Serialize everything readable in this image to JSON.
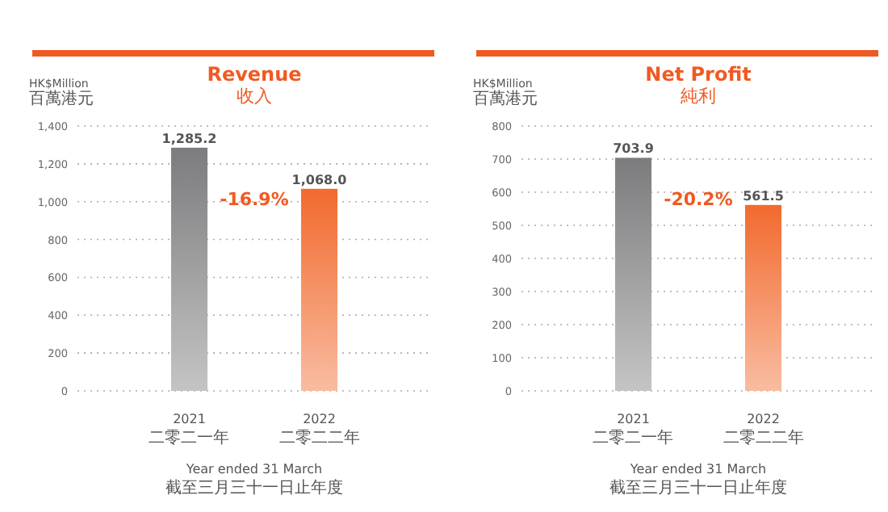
{
  "chart_data": [
    {
      "type": "bar",
      "title": "Revenue",
      "subtitle": "收入",
      "ylabel": "HK$Million\n百萬港元",
      "xlabel": "Year ended 31 March\n截至三月三十一日止年度",
      "categories": [
        "2021\n二零二一年",
        "2022\n二零二二年"
      ],
      "values": [
        1285.2,
        1068.0
      ],
      "colors": [
        "#7c7c7e",
        "#f26a2e"
      ],
      "value_labels": [
        "1,285.2",
        "1,068.0"
      ],
      "ylim": [
        0,
        1400
      ],
      "yticks": [
        0,
        200,
        400,
        600,
        800,
        {
          "value": 1000,
          "label": "1,000"
        },
        {
          "value": 1200,
          "label": "1,200"
        },
        {
          "value": 1400,
          "label": "1,400"
        }
      ],
      "grid": "y",
      "annotations": [
        "-16.9%"
      ]
    },
    {
      "type": "bar",
      "title": "Net Profit",
      "subtitle": "純利",
      "ylabel": "HK$Million\n百萬港元",
      "xlabel": "Year ended 31 March\n截至三月三十一日止年度",
      "categories": [
        "2021\n二零二一年",
        "2022\n二零二二年"
      ],
      "values": [
        703.9,
        561.5
      ],
      "colors": [
        "#7c7c7e",
        "#f26a2e"
      ],
      "value_labels": [
        "703.9",
        "561.5"
      ],
      "ylim": [
        0,
        800
      ],
      "yticks": [
        0,
        100,
        200,
        300,
        400,
        500,
        600,
        700,
        800
      ],
      "grid": "y",
      "annotations": [
        "-20.2%"
      ]
    }
  ]
}
